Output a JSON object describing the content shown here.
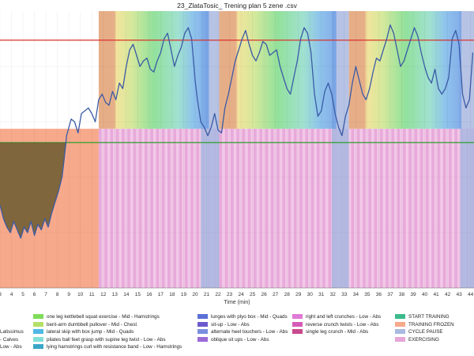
{
  "chart_data": {
    "type": "area",
    "title": "23_ZlataTosic_ Trening plan 5 zene .csv",
    "xlabel": "Time (min)",
    "xlim": [
      3,
      44.3
    ],
    "ylim": [
      0,
      100
    ],
    "x_ticks": [
      "3",
      "4",
      "5",
      "6",
      "7",
      "8",
      "9",
      "10",
      "11",
      "12",
      "13",
      "14",
      "15",
      "16",
      "17",
      "18",
      "19",
      "20",
      "21",
      "22",
      "23",
      "24",
      "25",
      "26",
      "27",
      "28",
      "29",
      "30",
      "31",
      "32",
      "33",
      "34",
      "35",
      "36",
      "37",
      "38",
      "39",
      "40",
      "41",
      "42",
      "43",
      "44"
    ],
    "grid": true,
    "legend_position": "bottom",
    "colors": {
      "red_line": "#d9332d",
      "green_line": "#2ca02c",
      "signal": "#3b5ba5",
      "frozen_fill": "#f7a98c",
      "fill_below": "#6b5a2e",
      "exercising": "#e7a6d8",
      "cycle_pause": "#a9b9e0",
      "heat_start": "#e2a072",
      "heat_mid": "#7fdc8a",
      "heat_cool": "#7ab8e8"
    },
    "reference_lines": [
      {
        "y": 89.5,
        "color": "#d9332d"
      },
      {
        "y": 52.5,
        "color": "#2ca02c"
      }
    ],
    "zone_y_boundary": 57.5,
    "heat_bands": [
      {
        "start": 11.6,
        "end": 21.2
      },
      {
        "start": 22.1,
        "end": 32.3
      },
      {
        "start": 33.4,
        "end": 43.2
      }
    ],
    "pause_bands": [
      {
        "start": 20.5,
        "end": 22.1
      },
      {
        "start": 31.9,
        "end": 33.4
      },
      {
        "start": 43.1,
        "end": 44.3
      }
    ],
    "frozen_band": {
      "start": 3,
      "end": 11.6
    },
    "series": [
      {
        "x": [
          3,
          3.3,
          3.6,
          3.9,
          4.2,
          4.5,
          4.8,
          5.1,
          5.4,
          5.7,
          6,
          6.3,
          6.6,
          6.9,
          7.2,
          7.5,
          7.8,
          8.1,
          8.4,
          8.6,
          8.8,
          9.0,
          9.2,
          9.5,
          9.8,
          10.1,
          10.4,
          10.7,
          11.0,
          11.3,
          11.6,
          11.9,
          12.2,
          12.5,
          12.8,
          13.1,
          13.4,
          13.7,
          14.0,
          14.3,
          14.6,
          14.9,
          15.2,
          15.5,
          15.8,
          16.1,
          16.4,
          16.7,
          17.0,
          17.3,
          17.6,
          17.9,
          18.2,
          18.5,
          18.8,
          19.1,
          19.4,
          19.7,
          20.0,
          20.2,
          20.5,
          20.8,
          21.1,
          21.4,
          21.7,
          22.0,
          22.3,
          22.6,
          22.9,
          23.2,
          23.5,
          23.8,
          24.1,
          24.4,
          24.7,
          25.0,
          25.3,
          25.6,
          25.9,
          26.2,
          26.5,
          26.8,
          27.1,
          27.4,
          27.7,
          28.0,
          28.3,
          28.6,
          28.9,
          29.2,
          29.5,
          29.8,
          30.1,
          30.4,
          30.7,
          31.0,
          31.3,
          31.6,
          31.9,
          32.2,
          32.5,
          32.8,
          33.1,
          33.4,
          33.7,
          34.0,
          34.3,
          34.6,
          34.9,
          35.2,
          35.5,
          35.8,
          36.1,
          36.4,
          36.7,
          37.0,
          37.3,
          37.6,
          37.9,
          38.2,
          38.5,
          38.8,
          39.1,
          39.4,
          39.7,
          40.0,
          40.3,
          40.6,
          40.9,
          41.2,
          41.5,
          41.8,
          42.1,
          42.4,
          42.7,
          43.0,
          43.3,
          43.6,
          43.9,
          44.2
        ],
        "y": [
          30,
          25,
          22,
          20,
          24,
          21,
          18,
          22,
          20,
          24,
          19,
          23,
          21,
          25,
          22,
          27,
          31,
          35,
          40,
          47,
          55,
          58,
          61,
          60,
          56,
          63,
          64,
          65,
          63,
          60,
          68,
          70,
          67,
          66,
          71,
          68,
          74,
          72,
          80,
          86,
          88,
          84,
          80,
          82,
          83,
          79,
          78,
          82,
          85,
          90,
          92,
          86,
          80,
          84,
          87,
          92,
          94,
          90,
          75,
          68,
          60,
          58,
          55,
          58,
          63,
          57,
          56,
          65,
          70,
          76,
          82,
          86,
          90,
          93,
          88,
          84,
          82,
          85,
          89,
          88,
          84,
          85,
          86,
          80,
          76,
          72,
          70,
          76,
          82,
          90,
          94,
          92,
          85,
          70,
          62,
          64,
          71,
          74,
          70,
          63,
          58,
          55,
          62,
          66,
          74,
          80,
          75,
          70,
          68,
          72,
          78,
          83,
          82,
          86,
          90,
          95,
          92,
          86,
          80,
          82,
          86,
          90,
          94,
          91,
          85,
          80,
          76,
          74,
          79,
          72,
          70,
          72,
          76,
          90,
          93,
          88,
          70,
          65,
          68,
          85
        ]
      }
    ],
    "legend": [
      "Latissimus",
      "- Calves",
      "Low - Abs",
      "one leg kettlebell squat exercise - Mid - Hamstrings",
      "bent-arm dumbbell pullover - Mid - Chest",
      "lateral skip with box jump - Mid - Quads",
      "pilates ball feet grasp with supine leg twist - Low - Abs",
      "lying hamstrings curl with resistance band - Low - Hamstrings",
      "lunges with plyo box - Mid - Quads",
      "sit-up - Low - Abs",
      "alternate heel touchers - Low - Abs",
      "oblique sit ups - Low - Abs",
      "right and left crunches - Low - Abs",
      "reverse crunch twists - Low - Abs",
      "single leg crunch - Mid - Abs",
      "START TRAINING",
      "TRAINING FROZEN",
      "CYCLE PAUSE",
      "EXERCISING"
    ],
    "legend_colors": [
      "",
      "",
      "",
      "#7fdc5a",
      "#b5e068",
      "#4fb8e6",
      "#80e0d8",
      "#3aa6c8",
      "#5b6fd6",
      "#6a5acd",
      "#7a8ee0",
      "#9b6ad6",
      "#e07ad6",
      "#d65ab8",
      "#c84a8c",
      "#3cba8c",
      "#f7a98c",
      "#a9b9e0",
      "#e7a6d8"
    ]
  }
}
